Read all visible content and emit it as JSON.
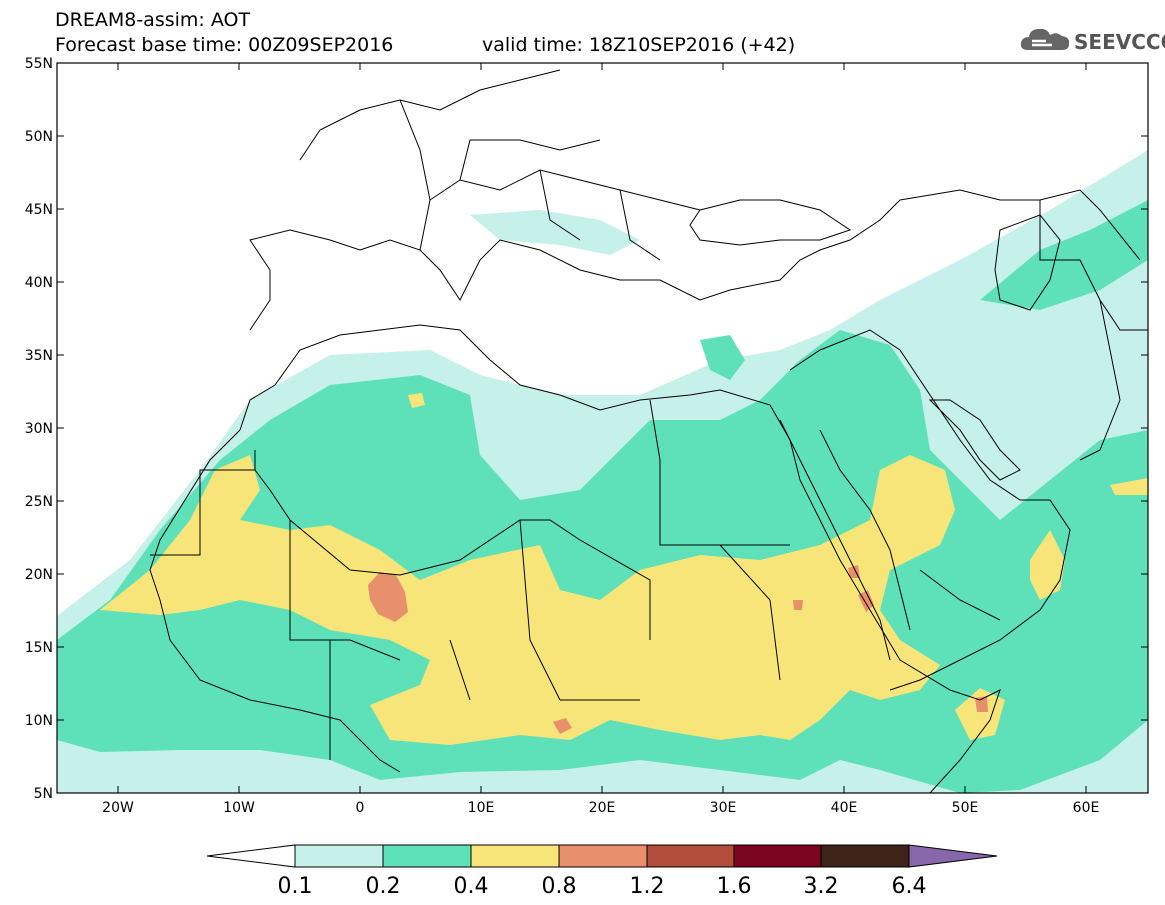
{
  "header": {
    "title": "DREAM8-assim: AOT",
    "base_time": "Forecast base time: 00Z09SEP2016",
    "valid_time": "valid time: 18Z10SEP2016 (+42)",
    "logo_text": "SEEVCCC"
  },
  "map": {
    "lat_labels": [
      "55N",
      "50N",
      "45N",
      "40N",
      "35N",
      "30N",
      "25N",
      "20N",
      "15N",
      "10N",
      "5N"
    ],
    "lon_labels": [
      "20W",
      "10W",
      "0",
      "10E",
      "20E",
      "30E",
      "40E",
      "50E",
      "60E"
    ],
    "lon_range": [
      -25,
      65
    ],
    "lat_range": [
      5,
      55
    ]
  },
  "colorbar": {
    "levels": [
      "0.1",
      "0.2",
      "0.4",
      "0.8",
      "1.2",
      "1.6",
      "3.2",
      "6.4"
    ],
    "colors": [
      "#c6f0ea",
      "#5ee1b9",
      "#f7e57a",
      "#e8906c",
      "#b24d3c",
      "#7c0620",
      "#3e2318",
      "#8866aa"
    ],
    "under_color": "#ffffff"
  }
}
